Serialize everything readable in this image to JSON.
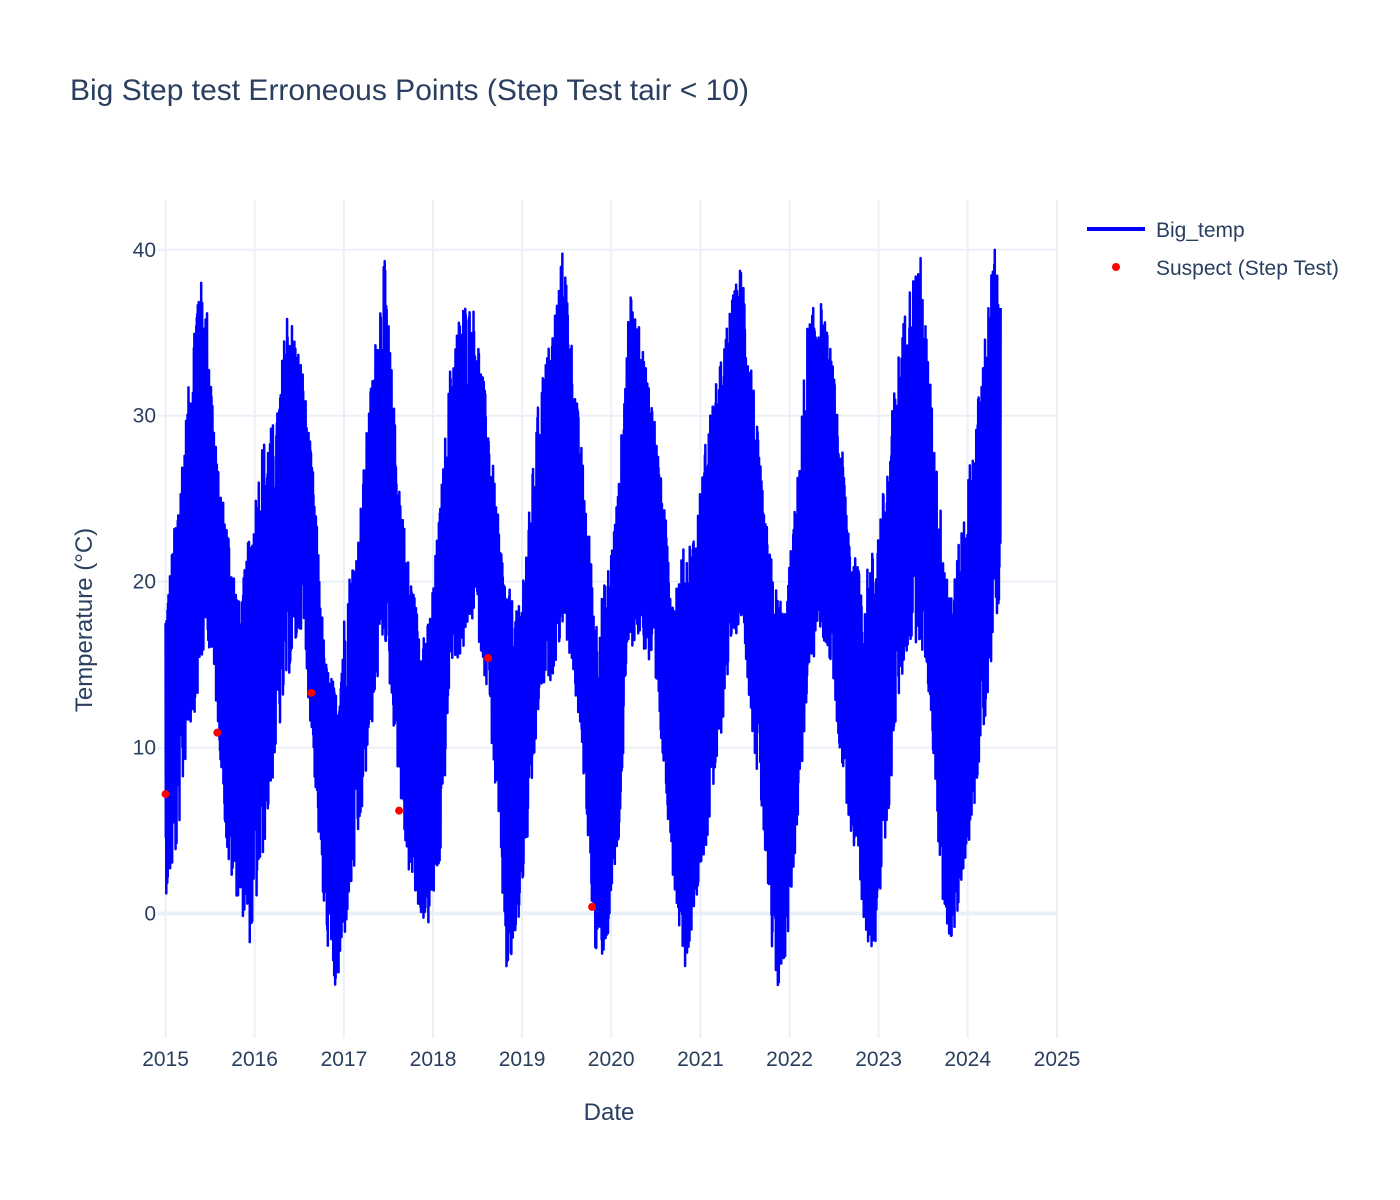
{
  "chart_data": {
    "type": "line",
    "title": "Big Step test Erroneous Points (Step Test tair < 10)",
    "xlabel": "Date",
    "ylabel": "Temperature (°C)",
    "x_tick_labels": [
      "2015",
      "2016",
      "2017",
      "2018",
      "2019",
      "2020",
      "2021",
      "2022",
      "2023",
      "2024",
      "2025"
    ],
    "y_tick_labels": [
      "0",
      "10",
      "20",
      "30",
      "40"
    ],
    "xlim": [
      "2014-12-01",
      "2025-01-01"
    ],
    "ylim": [
      -7.5,
      43
    ],
    "grid": true,
    "legend_position": "top-right",
    "series": [
      {
        "name": "Big_temp",
        "kind": "line",
        "color": "#0000ff",
        "x_range": [
          "2015-01-01",
          "2024-05-15"
        ],
        "points": [
          {
            "x": "2015-01-05",
            "low": 1.2,
            "high": 19.0
          },
          {
            "x": "2015-02-15",
            "low": 3.5,
            "high": 24.5
          },
          {
            "x": "2015-04-01",
            "low": 10.5,
            "high": 31.0
          },
          {
            "x": "2015-05-15",
            "low": 13.0,
            "high": 39.0
          },
          {
            "x": "2015-06-20",
            "low": 17.0,
            "high": 36.5
          },
          {
            "x": "2015-08-01",
            "low": 12.0,
            "high": 27.0
          },
          {
            "x": "2015-09-15",
            "low": 2.5,
            "high": 23.5
          },
          {
            "x": "2015-11-01",
            "low": 0.5,
            "high": 18.5
          },
          {
            "x": "2015-12-15",
            "low": -2.0,
            "high": 23.5
          },
          {
            "x": "2016-02-01",
            "low": 3.0,
            "high": 28.5
          },
          {
            "x": "2016-04-01",
            "low": 10.0,
            "high": 30.0
          },
          {
            "x": "2016-05-15",
            "low": 14.0,
            "high": 37.0
          },
          {
            "x": "2016-07-15",
            "low": 17.5,
            "high": 33.0
          },
          {
            "x": "2016-09-01",
            "low": 8.5,
            "high": 26.0
          },
          {
            "x": "2016-10-15",
            "low": -1.0,
            "high": 15.5
          },
          {
            "x": "2016-12-01",
            "low": -5.2,
            "high": 13.5
          },
          {
            "x": "2017-01-15",
            "low": -0.3,
            "high": 20.0
          },
          {
            "x": "2017-03-01",
            "low": 4.0,
            "high": 23.0
          },
          {
            "x": "2017-04-15",
            "low": 10.0,
            "high": 31.0
          },
          {
            "x": "2017-06-15",
            "low": 17.0,
            "high": 39.8
          },
          {
            "x": "2017-08-01",
            "low": 10.0,
            "high": 29.0
          },
          {
            "x": "2017-09-15",
            "low": 3.0,
            "high": 22.0
          },
          {
            "x": "2017-11-01",
            "low": 0.0,
            "high": 18.0
          },
          {
            "x": "2017-12-15",
            "low": -0.8,
            "high": 17.5
          },
          {
            "x": "2018-02-01",
            "low": 3.0,
            "high": 25.0
          },
          {
            "x": "2018-03-15",
            "low": 15.0,
            "high": 33.5
          },
          {
            "x": "2018-05-01",
            "low": 15.5,
            "high": 37.0
          },
          {
            "x": "2018-06-20",
            "low": 18.0,
            "high": 36.5
          },
          {
            "x": "2018-08-15",
            "low": 13.0,
            "high": 30.0
          },
          {
            "x": "2018-10-01",
            "low": 4.0,
            "high": 23.0
          },
          {
            "x": "2018-11-01",
            "low": -4.5,
            "high": 20.0
          },
          {
            "x": "2018-12-15",
            "low": -1.0,
            "high": 18.0
          },
          {
            "x": "2019-02-01",
            "low": 5.5,
            "high": 24.5
          },
          {
            "x": "2019-03-15",
            "low": 13.0,
            "high": 32.0
          },
          {
            "x": "2019-05-01",
            "low": 14.0,
            "high": 35.0
          },
          {
            "x": "2019-06-20",
            "low": 17.5,
            "high": 40.5
          },
          {
            "x": "2019-08-01",
            "low": 14.0,
            "high": 33.0
          },
          {
            "x": "2019-09-15",
            "low": 7.5,
            "high": 26.0
          },
          {
            "x": "2019-11-01",
            "low": -3.5,
            "high": 18.0
          },
          {
            "x": "2019-12-15",
            "low": -2.0,
            "high": 20.5
          },
          {
            "x": "2020-02-01",
            "low": 4.0,
            "high": 26.0
          },
          {
            "x": "2020-03-15",
            "low": 16.0,
            "high": 37.5
          },
          {
            "x": "2020-05-01",
            "low": 16.5,
            "high": 35.0
          },
          {
            "x": "2020-06-20",
            "low": 14.0,
            "high": 31.0
          },
          {
            "x": "2020-08-01",
            "low": 9.0,
            "high": 25.0
          },
          {
            "x": "2020-09-15",
            "low": 1.5,
            "high": 20.0
          },
          {
            "x": "2020-11-01",
            "low": -3.5,
            "high": 22.5
          },
          {
            "x": "2020-12-15",
            "low": 1.0,
            "high": 23.5
          },
          {
            "x": "2021-02-01",
            "low": 4.5,
            "high": 30.0
          },
          {
            "x": "2021-03-15",
            "low": 9.0,
            "high": 32.5
          },
          {
            "x": "2021-05-01",
            "low": 15.5,
            "high": 36.5
          },
          {
            "x": "2021-06-20",
            "low": 18.0,
            "high": 39.5
          },
          {
            "x": "2021-08-01",
            "low": 11.0,
            "high": 33.0
          },
          {
            "x": "2021-09-15",
            "low": 5.0,
            "high": 25.0
          },
          {
            "x": "2021-11-01",
            "low": -5.7,
            "high": 20.0
          },
          {
            "x": "2021-12-15",
            "low": -3.0,
            "high": 18.5
          },
          {
            "x": "2022-02-01",
            "low": 5.0,
            "high": 26.0
          },
          {
            "x": "2022-03-15",
            "low": 13.0,
            "high": 35.5
          },
          {
            "x": "2022-05-01",
            "low": 17.0,
            "high": 37.5
          },
          {
            "x": "2022-06-20",
            "low": 15.0,
            "high": 34.0
          },
          {
            "x": "2022-08-01",
            "low": 9.0,
            "high": 28.5
          },
          {
            "x": "2022-09-15",
            "low": 4.0,
            "high": 22.0
          },
          {
            "x": "2022-11-01",
            "low": -1.5,
            "high": 20.0
          },
          {
            "x": "2022-12-15",
            "low": -2.2,
            "high": 22.5
          },
          {
            "x": "2023-02-01",
            "low": 4.0,
            "high": 26.5
          },
          {
            "x": "2023-03-15",
            "low": 12.0,
            "high": 33.0
          },
          {
            "x": "2023-05-01",
            "low": 16.0,
            "high": 37.5
          },
          {
            "x": "2023-06-20",
            "low": 16.5,
            "high": 40.0
          },
          {
            "x": "2023-08-01",
            "low": 12.5,
            "high": 32.0
          },
          {
            "x": "2023-09-15",
            "low": 1.0,
            "high": 24.0
          },
          {
            "x": "2023-11-01",
            "low": -2.5,
            "high": 19.5
          },
          {
            "x": "2023-12-15",
            "low": 2.5,
            "high": 24.5
          },
          {
            "x": "2024-02-01",
            "low": 6.5,
            "high": 29.5
          },
          {
            "x": "2024-03-15",
            "low": 12.0,
            "high": 35.5
          },
          {
            "x": "2024-04-20",
            "low": 17.0,
            "high": 40.5
          },
          {
            "x": "2024-05-15",
            "low": 19.5,
            "high": 36.5
          }
        ]
      },
      {
        "name": "Suspect (Step Test)",
        "kind": "scatter",
        "color": "#ff0000",
        "points": [
          {
            "x": "2015-01-01",
            "y": 7.2
          },
          {
            "x": "2015-08-01",
            "y": 10.9
          },
          {
            "x": "2016-08-20",
            "y": 13.3
          },
          {
            "x": "2017-08-15",
            "y": 6.2
          },
          {
            "x": "2018-08-15",
            "y": 15.4
          },
          {
            "x": "2019-10-15",
            "y": 0.4
          }
        ]
      }
    ]
  }
}
